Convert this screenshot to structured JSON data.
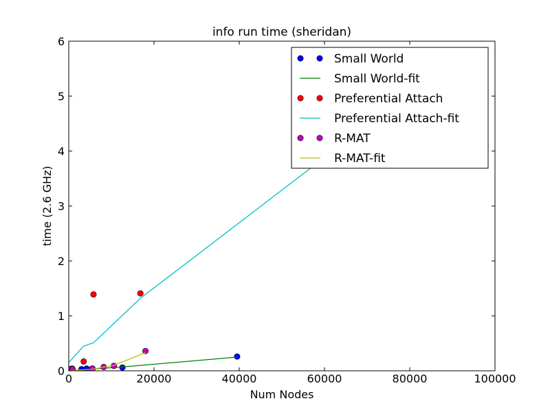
{
  "chart_data": {
    "type": "line",
    "title": "info run time (sheridan)",
    "xlabel": "Num Nodes",
    "ylabel": "time (2.6 GHz)",
    "xlim": [
      0,
      100000
    ],
    "ylim": [
      0,
      6
    ],
    "x_ticks": [
      0,
      20000,
      40000,
      60000,
      80000,
      100000
    ],
    "x_tick_labels": [
      "0",
      "20000",
      "40000",
      "60000",
      "80000",
      "100000"
    ],
    "y_ticks": [
      0,
      1,
      2,
      3,
      4,
      5,
      6
    ],
    "y_tick_labels": [
      "0",
      "1",
      "2",
      "3",
      "4",
      "5",
      "6"
    ],
    "grid": false,
    "legend_position": "top-right",
    "series": [
      {
        "name": "Small World",
        "kind": "scatter",
        "color": "#0000ff",
        "points": [
          [
            300,
            0.02
          ],
          [
            800,
            0.02
          ],
          [
            3000,
            0.03
          ],
          [
            4200,
            0.04
          ],
          [
            5500,
            0.04
          ],
          [
            12600,
            0.06
          ],
          [
            39500,
            0.26
          ]
        ]
      },
      {
        "name": "Small World-fit",
        "kind": "line",
        "color": "#008000",
        "points": [
          [
            0,
            0.0
          ],
          [
            5000,
            0.03
          ],
          [
            12600,
            0.07
          ],
          [
            39500,
            0.25
          ]
        ]
      },
      {
        "name": "Preferential Attach",
        "kind": "scatter",
        "color": "#ff0000",
        "points": [
          [
            300,
            0.03
          ],
          [
            800,
            0.04
          ],
          [
            3500,
            0.17
          ],
          [
            5800,
            1.39
          ],
          [
            16800,
            1.41
          ]
        ]
      },
      {
        "name": "Preferential Attach-fit",
        "kind": "line",
        "color": "#00bfbf",
        "points": [
          [
            0,
            0.15
          ],
          [
            3500,
            0.45
          ],
          [
            5800,
            0.51
          ],
          [
            16800,
            1.32
          ],
          [
            62000,
            4.0
          ]
        ]
      },
      {
        "name": "R-MAT",
        "kind": "scatter",
        "color": "#bf00bf",
        "points": [
          [
            200,
            0.03
          ],
          [
            900,
            0.03
          ],
          [
            5600,
            0.04
          ],
          [
            8200,
            0.07
          ],
          [
            10600,
            0.09
          ],
          [
            18000,
            0.36
          ]
        ]
      },
      {
        "name": "R-MAT-fit",
        "kind": "line",
        "color": "#bfbf00",
        "points": [
          [
            0,
            0.0
          ],
          [
            5600,
            0.03
          ],
          [
            10600,
            0.1
          ],
          [
            18000,
            0.33
          ]
        ]
      }
    ]
  }
}
